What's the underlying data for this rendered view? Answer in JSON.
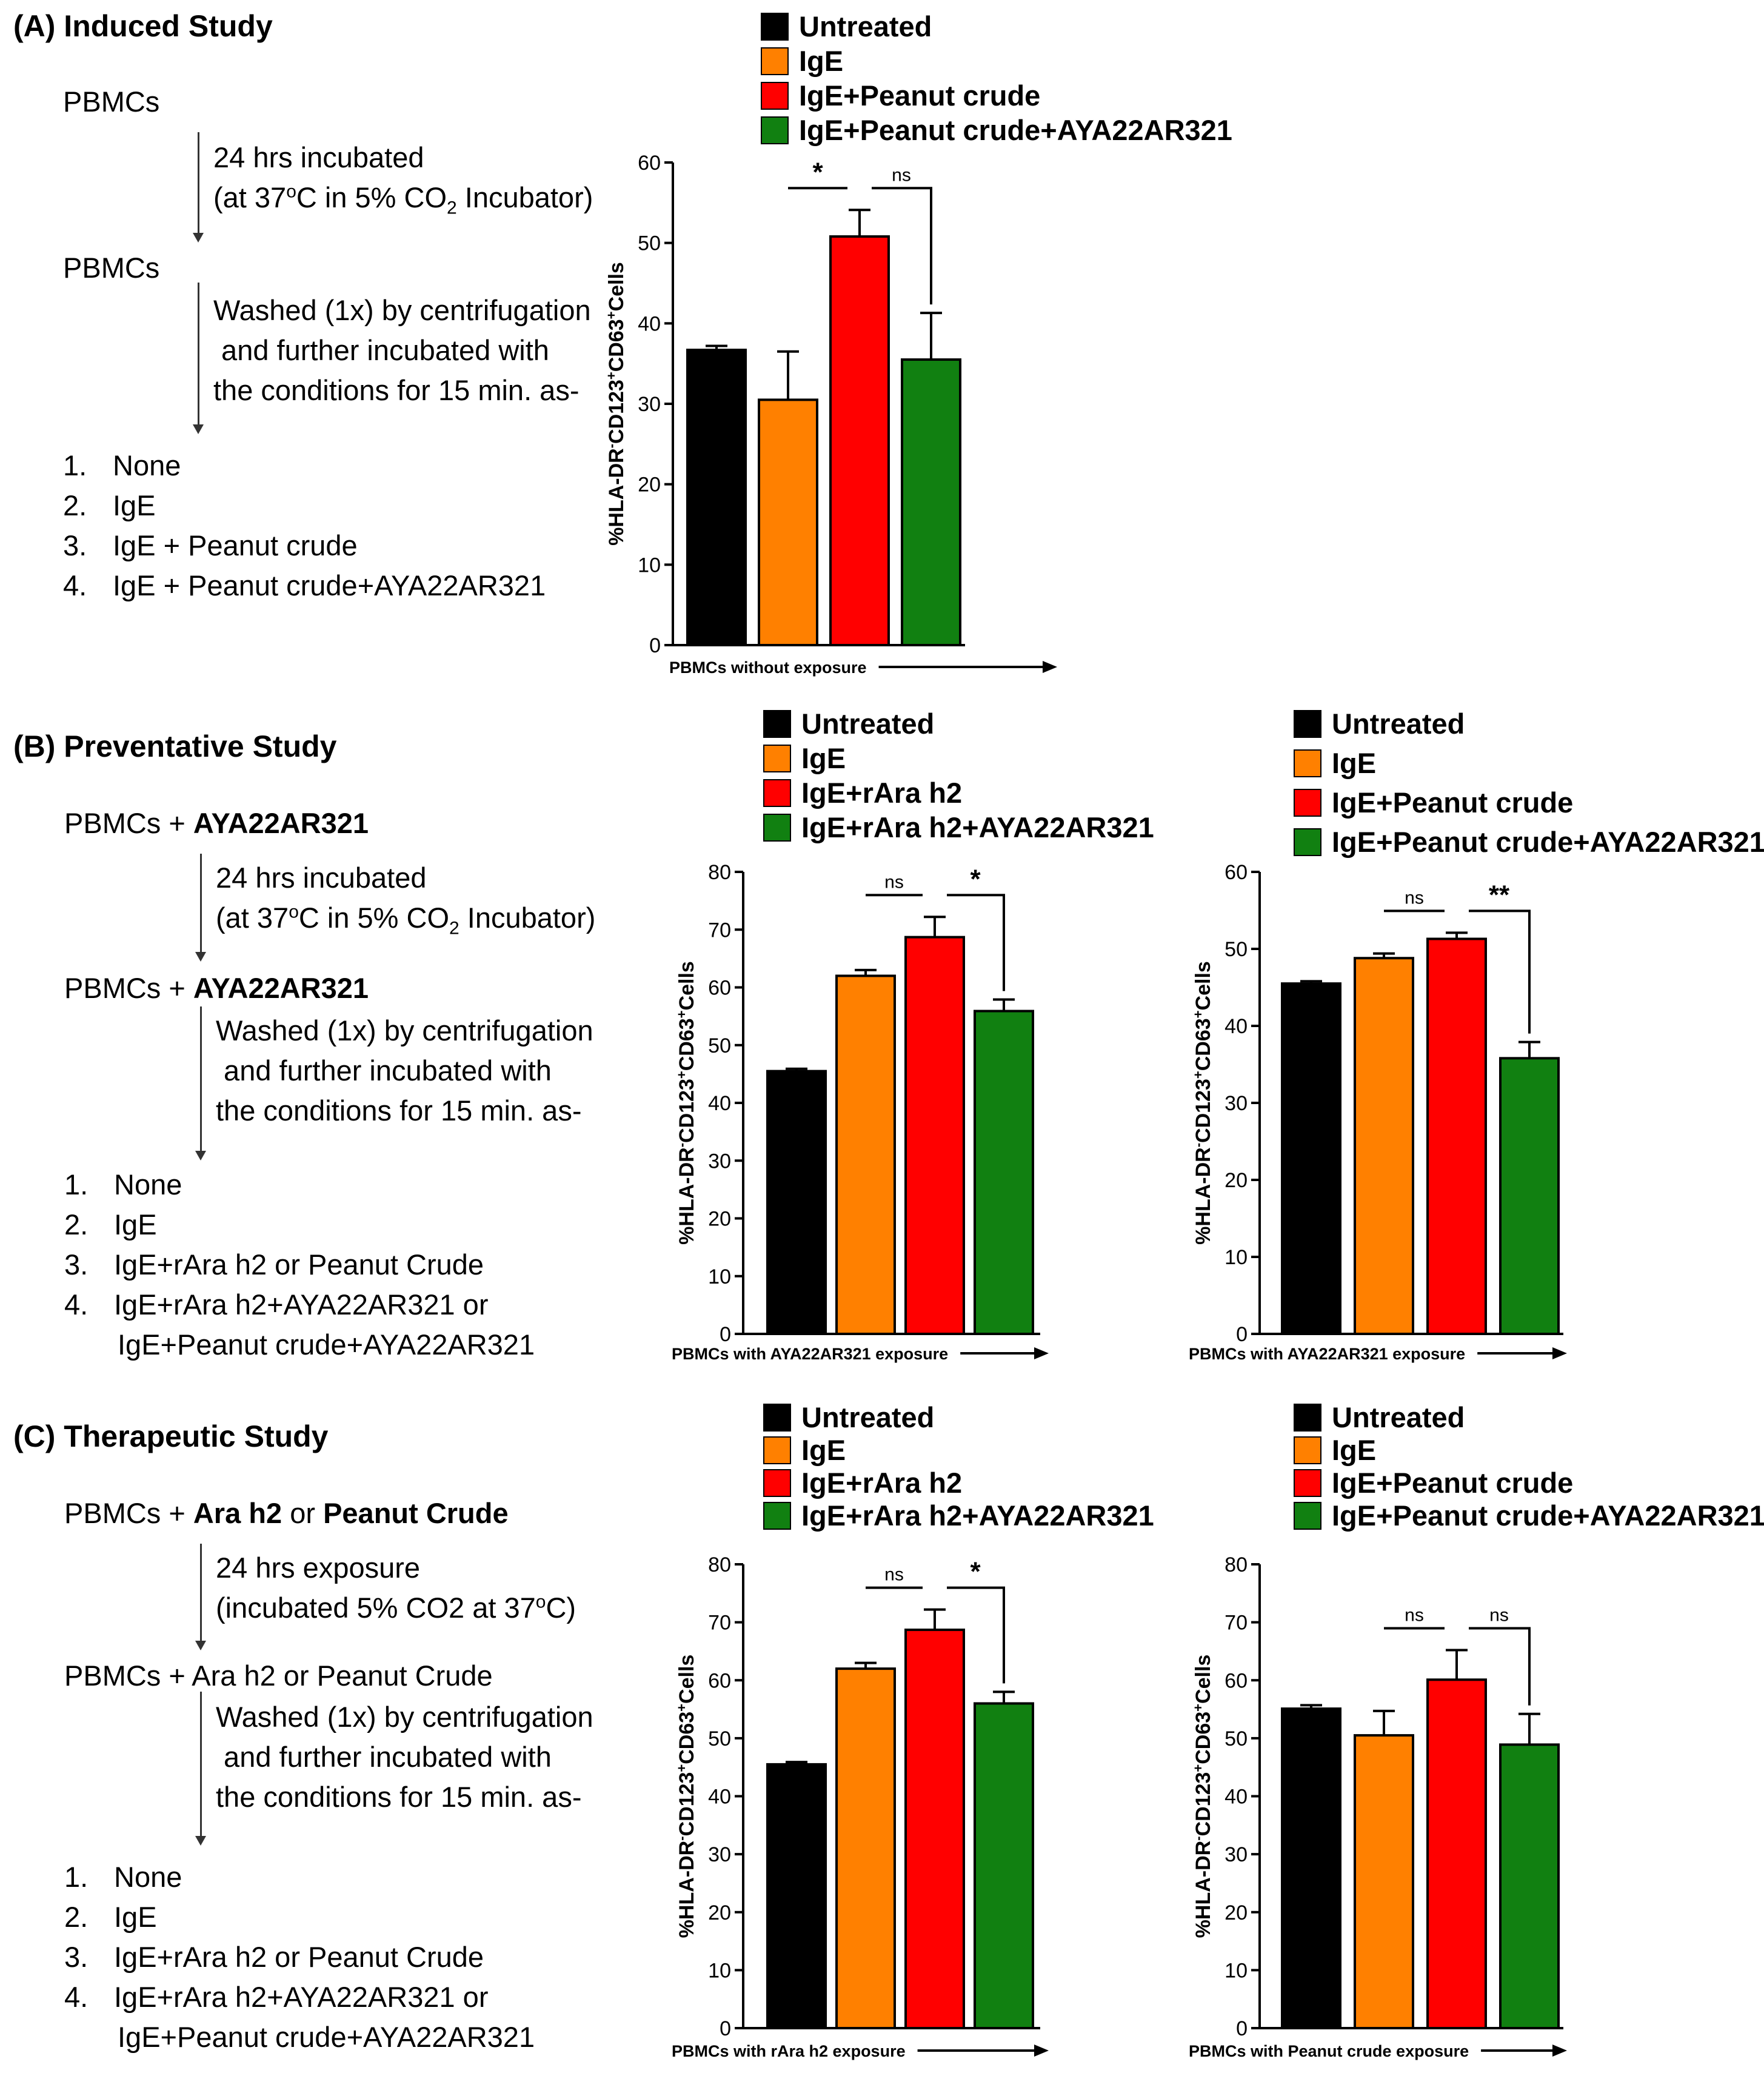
{
  "panels": {
    "A": {
      "title": "(A) Induced  Study",
      "start": "PBMCs",
      "step1_line1": "24 hrs incubated",
      "step1_line2_pre": "(at 37",
      "step1_line2_sup": "o",
      "step1_line2_mid": "C in 5% CO",
      "step1_line2_sub": "2",
      "step1_line2_post": " Incubator)",
      "mid": "PBMCs",
      "step2": [
        "Washed (1x) by centrifugation",
        " and further incubated with",
        "the conditions for 15 min. as-"
      ],
      "list": [
        {
          "num": "1.",
          "text": "None"
        },
        {
          "num": "2.",
          "text": "IgE"
        },
        {
          "num": "3.",
          "text": "IgE + Peanut crude"
        },
        {
          "num": "4.",
          "text": "IgE + Peanut crude+AYA22AR321"
        }
      ]
    },
    "B": {
      "title": "(B) Preventative Study",
      "start_pre": "PBMCs + ",
      "start_bold": "AYA22AR321",
      "step1_line1": "24 hrs incubated",
      "step1_line2_pre": "(at 37",
      "step1_line2_sup": "o",
      "step1_line2_mid": "C in 5% CO",
      "step1_line2_sub": "2",
      "step1_line2_post": " Incubator)",
      "mid_pre": "PBMCs + ",
      "mid_bold": "AYA22AR321",
      "step2": [
        "Washed (1x) by centrifugation",
        " and further incubated with",
        "the conditions for 15 min. as-"
      ],
      "list": [
        {
          "num": "1.",
          "text": "None"
        },
        {
          "num": "2.",
          "text": "IgE"
        },
        {
          "num": "3.",
          "text": "IgE+rAra h2 or Peanut Crude"
        },
        {
          "num": "4.",
          "text": "IgE+rAra h2+AYA22AR321 or"
        }
      ],
      "list_cont": "IgE+Peanut crude+AYA22AR321"
    },
    "C": {
      "title": "(C) Therapeutic Study",
      "start_pre": "PBMCs + ",
      "start_bold1": "Ara h2",
      "start_or": " or ",
      "start_bold2": "Peanut Crude",
      "step1_line1": "24 hrs exposure",
      "step1_line2_pre": "(incubated 5% CO2 at 37",
      "step1_line2_sup": "o",
      "step1_line2_post": "C)",
      "mid": "PBMCs + Ara h2 or Peanut Crude",
      "step2": [
        "Washed (1x) by centrifugation",
        " and further incubated with",
        "the conditions for 15 min. as-"
      ],
      "list": [
        {
          "num": "1.",
          "text": "None"
        },
        {
          "num": "2.",
          "text": "IgE"
        },
        {
          "num": "3.",
          "text": "IgE+rAra h2 or Peanut Crude"
        },
        {
          "num": "4.",
          "text": "IgE+rAra h2+AYA22AR321 or"
        }
      ],
      "list_cont": "IgE+Peanut crude+AYA22AR321"
    }
  },
  "colors": {
    "untreated": "#000000",
    "ige": "#FF8000",
    "allergen": "#FF0000",
    "treated": "#118011"
  },
  "chart_data": [
    {
      "id": "A",
      "type": "bar",
      "legend": [
        "Untreated",
        "IgE",
        "IgE+Peanut crude",
        "IgE+Peanut crude+AYA22AR321"
      ],
      "values": [
        36.7,
        30.5,
        50.8,
        35.5
      ],
      "errors": [
        0.5,
        6.0,
        3.3,
        5.8
      ],
      "ylim": [
        0,
        60
      ],
      "yticks": [
        "0",
        "10",
        "20",
        "30",
        "40",
        "50",
        "60"
      ],
      "ylabel": {
        "a": "%HLA-DR",
        "a_sup": "-",
        "b": "CD123",
        "b_sup": "+",
        "c": "CD63",
        "c_sup": "+",
        "d": "Cells"
      },
      "xlabel": "PBMCs without exposure",
      "sig": [
        {
          "from": 1,
          "to": 2,
          "label": "*",
          "drop": false
        },
        {
          "from": 2,
          "to": 3,
          "label": "ns",
          "drop": true
        }
      ]
    },
    {
      "id": "B1",
      "type": "bar",
      "legend": [
        "Untreated",
        "IgE",
        "IgE+rAra h2",
        "IgE+rAra h2+AYA22AR321"
      ],
      "values": [
        45.5,
        62.0,
        68.7,
        55.9
      ],
      "errors": [
        0.4,
        1.0,
        3.5,
        2.0
      ],
      "ylim": [
        0,
        80
      ],
      "yticks": [
        "0",
        "10",
        "20",
        "30",
        "40",
        "50",
        "60",
        "70",
        "80"
      ],
      "ylabel": {
        "a": "%HLA-DR",
        "a_sup": "-",
        "b": "CD123",
        "b_sup": "+",
        "c": "CD63",
        "c_sup": "+",
        "d": "Cells"
      },
      "xlabel": "PBMCs with AYA22AR321 exposure",
      "sig": [
        {
          "from": 1,
          "to": 2,
          "label": "ns",
          "drop": false
        },
        {
          "from": 2,
          "to": 3,
          "label": "*",
          "drop": true
        }
      ]
    },
    {
      "id": "B2",
      "type": "bar",
      "legend": [
        "Untreated",
        "IgE",
        "IgE+Peanut crude",
        "IgE+Peanut crude+AYA22AR321"
      ],
      "values": [
        45.5,
        48.8,
        51.3,
        35.8
      ],
      "errors": [
        0.3,
        0.6,
        0.8,
        2.1
      ],
      "ylim": [
        0,
        60
      ],
      "yticks": [
        "0",
        "10",
        "20",
        "30",
        "40",
        "50",
        "60"
      ],
      "ylabel": {
        "a": "%HLA-DR",
        "a_sup": "-",
        "b": "CD123",
        "b_sup": "+",
        "c": "CD63",
        "c_sup": "+",
        "d": "Cells"
      },
      "xlabel": "PBMCs with AYA22AR321 exposure",
      "sig": [
        {
          "from": 1,
          "to": 2,
          "label": "ns",
          "drop": false
        },
        {
          "from": 2,
          "to": 3,
          "label": "**",
          "drop": true
        }
      ]
    },
    {
      "id": "C1",
      "type": "bar",
      "legend": [
        "Untreated",
        "IgE",
        "IgE+rAra h2",
        "IgE+rAra h2+AYA22AR321"
      ],
      "values": [
        45.5,
        62.0,
        68.7,
        56.0
      ],
      "errors": [
        0.4,
        1.0,
        3.5,
        2.0
      ],
      "ylim": [
        0,
        80
      ],
      "yticks": [
        "0",
        "10",
        "20",
        "30",
        "40",
        "50",
        "60",
        "70",
        "80"
      ],
      "ylabel": {
        "a": "%HLA-DR",
        "a_sup": "-",
        "b": "CD123",
        "b_sup": "+",
        "c": "CD63",
        "c_sup": "+",
        "d": "Cells"
      },
      "xlabel": "PBMCs with rAra h2 exposure",
      "sig": [
        {
          "from": 1,
          "to": 2,
          "label": "ns",
          "drop": false
        },
        {
          "from": 2,
          "to": 3,
          "label": "*",
          "drop": true
        }
      ]
    },
    {
      "id": "C2",
      "type": "bar",
      "legend": [
        "Untreated",
        "IgE",
        "IgE+Peanut crude",
        "IgE+Peanut crude+AYA22AR321"
      ],
      "values": [
        55.1,
        50.5,
        60.1,
        48.9
      ],
      "errors": [
        0.6,
        4.2,
        5.1,
        5.3
      ],
      "ylim": [
        0,
        80
      ],
      "yticks": [
        "0",
        "10",
        "20",
        "30",
        "40",
        "50",
        "60",
        "70",
        "80"
      ],
      "ylabel": {
        "a": "%HLA-DR",
        "a_sup": "-",
        "b": "CD123",
        "b_sup": "+",
        "c": "CD63",
        "c_sup": "+",
        "d": "Cells"
      },
      "xlabel": "PBMCs with Peanut crude exposure",
      "sig": [
        {
          "from": 1,
          "to": 2,
          "label": "ns",
          "drop": false
        },
        {
          "from": 2,
          "to": 3,
          "label": "ns",
          "drop": true
        }
      ]
    }
  ]
}
